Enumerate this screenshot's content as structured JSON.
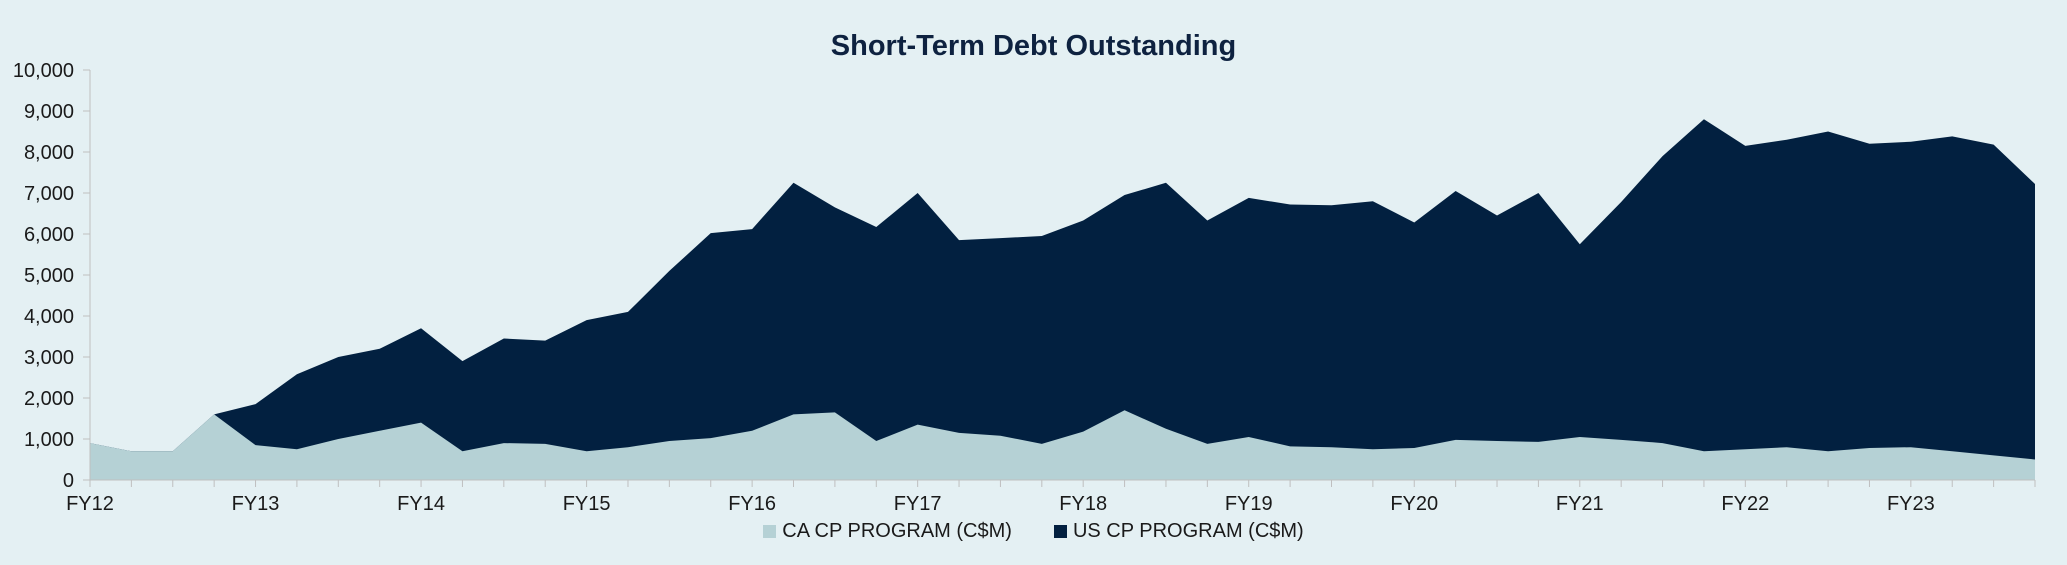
{
  "chart_data": {
    "type": "area",
    "stacked": true,
    "title": "Short-Term Debt Outstanding",
    "xlabel": "",
    "ylabel": "",
    "ylim": [
      0,
      10000
    ],
    "yticks": [
      "0",
      "1,000",
      "2,000",
      "3,000",
      "4,000",
      "5,000",
      "6,000",
      "7,000",
      "8,000",
      "9,000",
      "10,000"
    ],
    "x_labels": [
      "FY12",
      "FY13",
      "FY14",
      "FY15",
      "FY16",
      "FY17",
      "FY18",
      "FY19",
      "FY20",
      "FY21",
      "FY22",
      "FY23"
    ],
    "grid": false,
    "legend": "bottom",
    "series": [
      {
        "name": "CA CP PROGRAM (C$M)",
        "color": "#b5d1d5",
        "values": [
          900,
          700,
          700,
          1600,
          850,
          750,
          1000,
          1200,
          1400,
          700,
          900,
          880,
          700,
          800,
          950,
          1020,
          1200,
          1600,
          1650,
          950,
          1350,
          1150,
          1080,
          880,
          1180,
          1700,
          1250,
          880,
          1050,
          820,
          800,
          750,
          780,
          980,
          950,
          930,
          1050,
          980,
          900,
          700,
          750,
          800,
          700,
          780,
          800,
          700,
          600,
          500
        ]
      },
      {
        "name": "US CP PROGRAM (C$M)",
        "color": "#022040",
        "values": [
          0,
          0,
          0,
          0,
          1000,
          1830,
          2000,
          2000,
          2300,
          2200,
          2550,
          2520,
          3200,
          3300,
          4150,
          5000,
          4920,
          5650,
          5000,
          5220,
          5650,
          4700,
          4820,
          5070,
          5150,
          5250,
          6000,
          5450,
          5830,
          5900,
          5900,
          6050,
          5500,
          6070,
          5500,
          6070,
          4700,
          5800,
          7000,
          8100,
          7400,
          7500,
          7800,
          7420,
          7450,
          7680,
          7580,
          6720
        ]
      }
    ]
  }
}
